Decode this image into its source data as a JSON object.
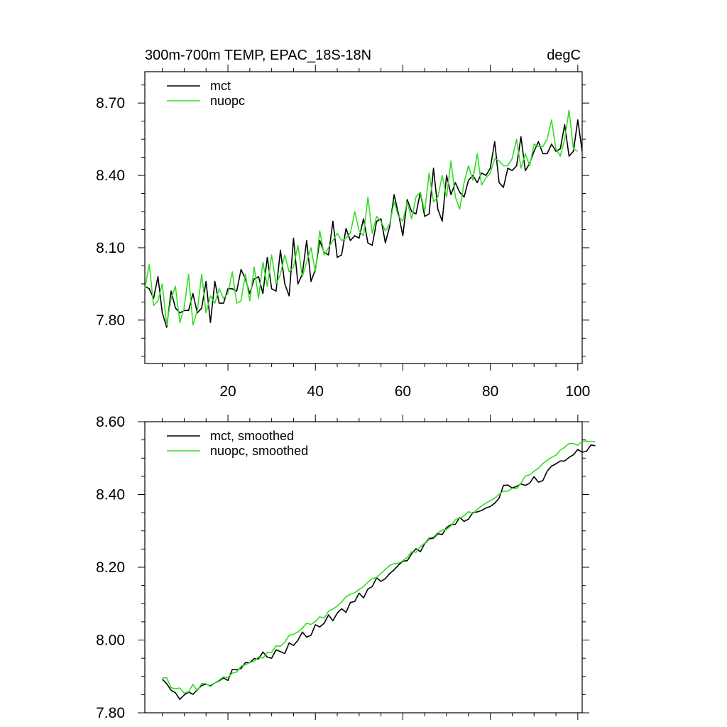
{
  "chart_data": [
    {
      "type": "line",
      "title": "300m-700m TEMP, EPAC_18S-18N",
      "units": "degC",
      "xlabel": "",
      "ylabel": "",
      "xlim": [
        1,
        101
      ],
      "ylim": [
        7.62,
        8.83
      ],
      "xticks": [
        20,
        40,
        60,
        80,
        100
      ],
      "xtick_labels": [
        "20",
        "40",
        "60",
        "80",
        "100"
      ],
      "yticks": [
        7.8,
        8.1,
        8.4,
        8.7
      ],
      "ytick_labels": [
        "7.80",
        "8.10",
        "8.40",
        "8.70"
      ],
      "legend_position": "top-left",
      "series": [
        {
          "name": "mct",
          "color": "#000000",
          "x_start": 1,
          "values": [
            7.94,
            7.93,
            7.89,
            7.98,
            7.83,
            7.77,
            7.92,
            7.85,
            7.83,
            7.84,
            7.84,
            7.91,
            7.83,
            7.85,
            7.96,
            7.79,
            7.96,
            7.87,
            7.87,
            7.93,
            7.93,
            7.92,
            8.01,
            7.97,
            7.91,
            7.97,
            7.98,
            7.91,
            8.06,
            7.93,
            7.92,
            8.09,
            7.95,
            7.9,
            8.14,
            7.95,
            7.99,
            8.13,
            7.96,
            8.01,
            8.13,
            8.08,
            8.07,
            8.21,
            8.06,
            8.07,
            8.18,
            8.13,
            8.15,
            8.14,
            8.22,
            8.12,
            8.11,
            8.21,
            8.22,
            8.12,
            8.19,
            8.32,
            8.24,
            8.15,
            8.3,
            8.25,
            8.24,
            8.33,
            8.23,
            8.24,
            8.43,
            8.26,
            8.21,
            8.4,
            8.32,
            8.37,
            8.33,
            8.31,
            8.38,
            8.4,
            8.37,
            8.41,
            8.4,
            8.43,
            8.54,
            8.37,
            8.35,
            8.43,
            8.42,
            8.44,
            8.56,
            8.42,
            8.45,
            8.5,
            8.54,
            8.49,
            8.49,
            8.53,
            8.5,
            8.51,
            8.61,
            8.48,
            8.5,
            8.63,
            8.5
          ]
        },
        {
          "name": "nuopc",
          "color": "#33dd22",
          "x_start": 1,
          "values": [
            7.93,
            8.03,
            7.86,
            7.88,
            7.95,
            7.78,
            7.89,
            7.94,
            7.79,
            7.85,
            7.99,
            7.78,
            7.84,
            7.99,
            7.83,
            7.9,
            7.87,
            7.93,
            7.89,
            7.91,
            8.0,
            7.87,
            7.88,
            7.99,
            7.88,
            8.02,
            7.89,
            8.04,
            7.94,
            8.07,
            7.95,
            7.99,
            8.07,
            8.0,
            8.02,
            8.11,
            7.98,
            8.04,
            8.1,
            8.0,
            8.17,
            8.07,
            8.1,
            8.13,
            8.16,
            8.13,
            8.14,
            8.16,
            8.25,
            8.17,
            8.15,
            8.31,
            8.16,
            8.23,
            8.21,
            8.17,
            8.2,
            8.29,
            8.23,
            8.21,
            8.29,
            8.22,
            8.31,
            8.33,
            8.25,
            8.41,
            8.29,
            8.31,
            8.4,
            8.31,
            8.46,
            8.31,
            8.26,
            8.37,
            8.44,
            8.38,
            8.49,
            8.36,
            8.39,
            8.41,
            8.47,
            8.46,
            8.44,
            8.44,
            8.47,
            8.55,
            8.43,
            8.49,
            8.44,
            8.53,
            8.52,
            8.52,
            8.55,
            8.63,
            8.51,
            8.48,
            8.55,
            8.67,
            8.51,
            8.5
          ]
        }
      ]
    },
    {
      "type": "line",
      "title": "",
      "xlabel": "",
      "ylabel": "",
      "xlim": [
        1,
        101
      ],
      "ylim": [
        7.8,
        8.6
      ],
      "xticks": [
        20,
        40,
        60,
        80,
        100
      ],
      "xtick_labels": [],
      "yticks": [
        7.8,
        8.0,
        8.2,
        8.4,
        8.6
      ],
      "ytick_labels": [
        "7.80",
        "8.00",
        "8.20",
        "8.40",
        "8.60"
      ],
      "legend_position": "top-left",
      "series": [
        {
          "name": "mct, smoothed",
          "color": "#000000",
          "x_start": 5,
          "values": [
            7.892,
            7.88,
            7.862,
            7.855,
            7.837,
            7.849,
            7.857,
            7.851,
            7.863,
            7.875,
            7.879,
            7.874,
            7.882,
            7.888,
            7.896,
            7.889,
            7.919,
            7.918,
            7.922,
            7.938,
            7.938,
            7.949,
            7.948,
            7.967,
            7.953,
            7.95,
            7.973,
            7.968,
            7.963,
            7.992,
            7.985,
            7.999,
            8.022,
            8.008,
            8.013,
            8.042,
            8.036,
            8.046,
            8.069,
            8.053,
            8.074,
            8.086,
            8.076,
            8.103,
            8.106,
            8.129,
            8.116,
            8.14,
            8.147,
            8.171,
            8.161,
            8.169,
            8.183,
            8.193,
            8.206,
            8.217,
            8.218,
            8.237,
            8.251,
            8.243,
            8.265,
            8.278,
            8.28,
            8.292,
            8.29,
            8.309,
            8.317,
            8.318,
            8.337,
            8.326,
            8.332,
            8.35,
            8.352,
            8.356,
            8.363,
            8.367,
            8.376,
            8.39,
            8.425,
            8.426,
            8.418,
            8.422,
            8.429,
            8.425,
            8.431,
            8.449,
            8.434,
            8.438,
            8.464,
            8.478,
            8.484,
            8.492,
            8.492,
            8.502,
            8.509,
            8.524,
            8.516,
            8.519,
            8.536,
            8.534
          ]
        },
        {
          "name": "nuopc, smoothed",
          "color": "#33dd22",
          "x_start": 5,
          "values": [
            7.896,
            7.896,
            7.869,
            7.866,
            7.868,
            7.854,
            7.858,
            7.878,
            7.86,
            7.881,
            7.88,
            7.872,
            7.882,
            7.89,
            7.899,
            7.897,
            7.909,
            7.912,
            7.928,
            7.932,
            7.938,
            7.942,
            7.954,
            7.95,
            7.966,
            7.966,
            7.984,
            7.983,
            7.994,
            8.013,
            8.016,
            8.022,
            8.033,
            8.046,
            8.043,
            8.051,
            8.064,
            8.06,
            8.079,
            8.085,
            8.093,
            8.105,
            8.119,
            8.126,
            8.13,
            8.139,
            8.147,
            8.159,
            8.169,
            8.172,
            8.183,
            8.194,
            8.205,
            8.21,
            8.211,
            8.218,
            8.227,
            8.243,
            8.241,
            8.257,
            8.266,
            8.281,
            8.283,
            8.295,
            8.302,
            8.304,
            8.314,
            8.331,
            8.335,
            8.341,
            8.353,
            8.347,
            8.359,
            8.369,
            8.376,
            8.383,
            8.39,
            8.401,
            8.409,
            8.409,
            8.417,
            8.416,
            8.431,
            8.451,
            8.454,
            8.464,
            8.472,
            8.485,
            8.494,
            8.502,
            8.508,
            8.522,
            8.53,
            8.54,
            8.54,
            8.535,
            8.546,
            8.547,
            8.545,
            8.545
          ]
        }
      ]
    }
  ]
}
